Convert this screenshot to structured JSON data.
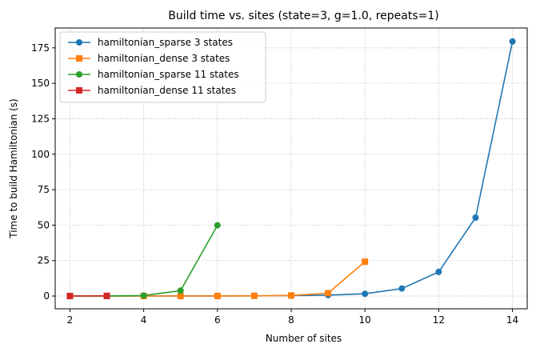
{
  "chart_data": {
    "type": "line",
    "title": "Build time vs. sites (state=3, g=1.0, repeats=1)",
    "xlabel": "Number of sites",
    "ylabel": "Time to build Hamiltonian (s)",
    "xlim": [
      1.6,
      14.4
    ],
    "ylim": [
      -9,
      189
    ],
    "xticks": [
      2,
      4,
      6,
      8,
      10,
      12,
      14
    ],
    "yticks": [
      0,
      25,
      50,
      75,
      100,
      125,
      150,
      175
    ],
    "grid": true,
    "legend_position": "top-left",
    "series": [
      {
        "name": "hamiltonian_sparse 3 states",
        "color": "#1f77b4",
        "marker": "circle",
        "x": [
          2,
          3,
          4,
          5,
          6,
          7,
          8,
          9,
          10,
          11,
          12,
          13,
          14
        ],
        "y": [
          0.01,
          0.02,
          0.03,
          0.05,
          0.08,
          0.15,
          0.3,
          0.6,
          1.6,
          5.3,
          17.0,
          55.3,
          179.5
        ]
      },
      {
        "name": "hamiltonian_dense 3 states",
        "color": "#ff7f0e",
        "marker": "square",
        "x": [
          2,
          3,
          4,
          5,
          6,
          7,
          8,
          9,
          10
        ],
        "y": [
          0.01,
          0.01,
          0.02,
          0.03,
          0.06,
          0.15,
          0.4,
          2.0,
          24.2
        ]
      },
      {
        "name": "hamiltonian_sparse 11 states",
        "color": "#2ca02c",
        "marker": "circle",
        "x": [
          2,
          3,
          4,
          5,
          6
        ],
        "y": [
          0.02,
          0.05,
          0.35,
          3.8,
          49.9
        ]
      },
      {
        "name": "hamiltonian_dense 11 states",
        "color": "#d62728",
        "marker": "square",
        "x": [
          2,
          3
        ],
        "y": [
          0.02,
          0.15
        ]
      }
    ]
  }
}
